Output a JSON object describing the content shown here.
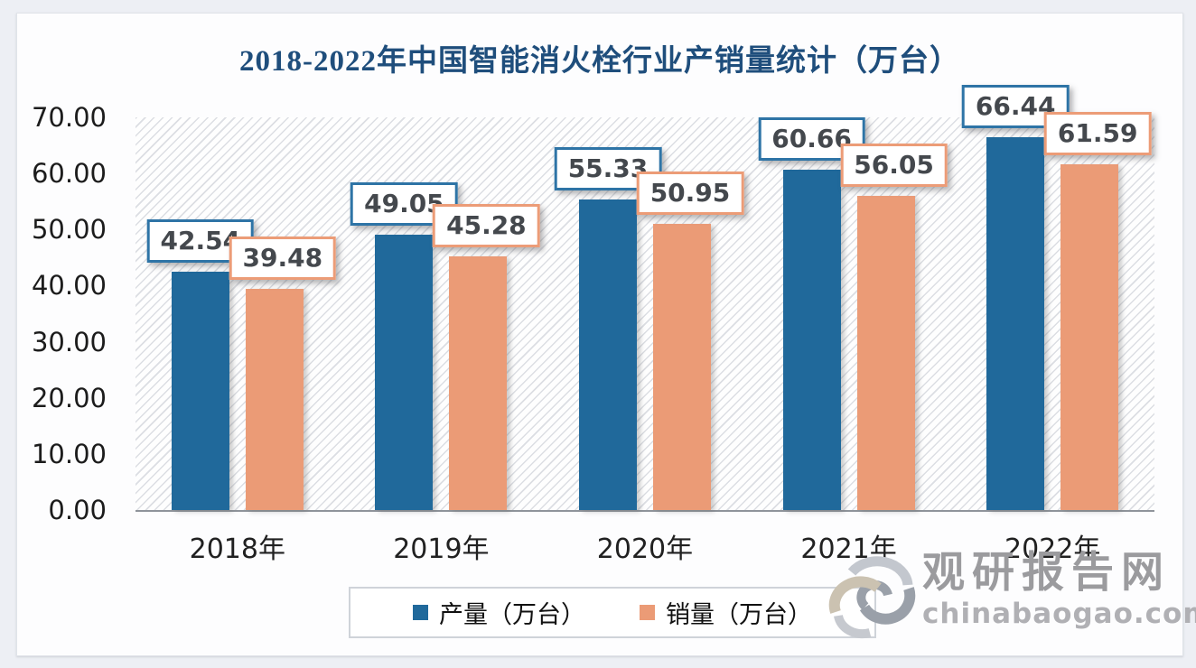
{
  "title": "2018-2022年中国智能消火栓行业产销量统计（万台）",
  "chart_data": {
    "type": "bar",
    "categories": [
      "2018年",
      "2019年",
      "2020年",
      "2021年",
      "2022年"
    ],
    "series": [
      {
        "name": "产量（万台）",
        "values": [
          42.54,
          49.05,
          55.33,
          60.66,
          66.44
        ],
        "color": "#20699b",
        "border_color": "#2e74a6"
      },
      {
        "name": "销量（万台）",
        "values": [
          39.48,
          45.28,
          50.95,
          56.05,
          61.59
        ],
        "color": "#eb9b76",
        "border_color": "#ec9c77"
      }
    ],
    "ylim": [
      0,
      70
    ],
    "yticks": [
      "70.00",
      "60.00",
      "50.00",
      "40.00",
      "30.00",
      "20.00",
      "10.00",
      "0.00"
    ],
    "grid": false,
    "hatch_background": true,
    "legend_position": "bottom",
    "value_labels": "boxed above bars, 2 decimals",
    "title_color": "#1f4e7c",
    "axis_line_color": "#8f949b"
  },
  "watermark": {
    "name": "观研报告网",
    "domain": "chinabaogao.com",
    "logo": "swirl-logo",
    "color": "#9b9b9e"
  }
}
